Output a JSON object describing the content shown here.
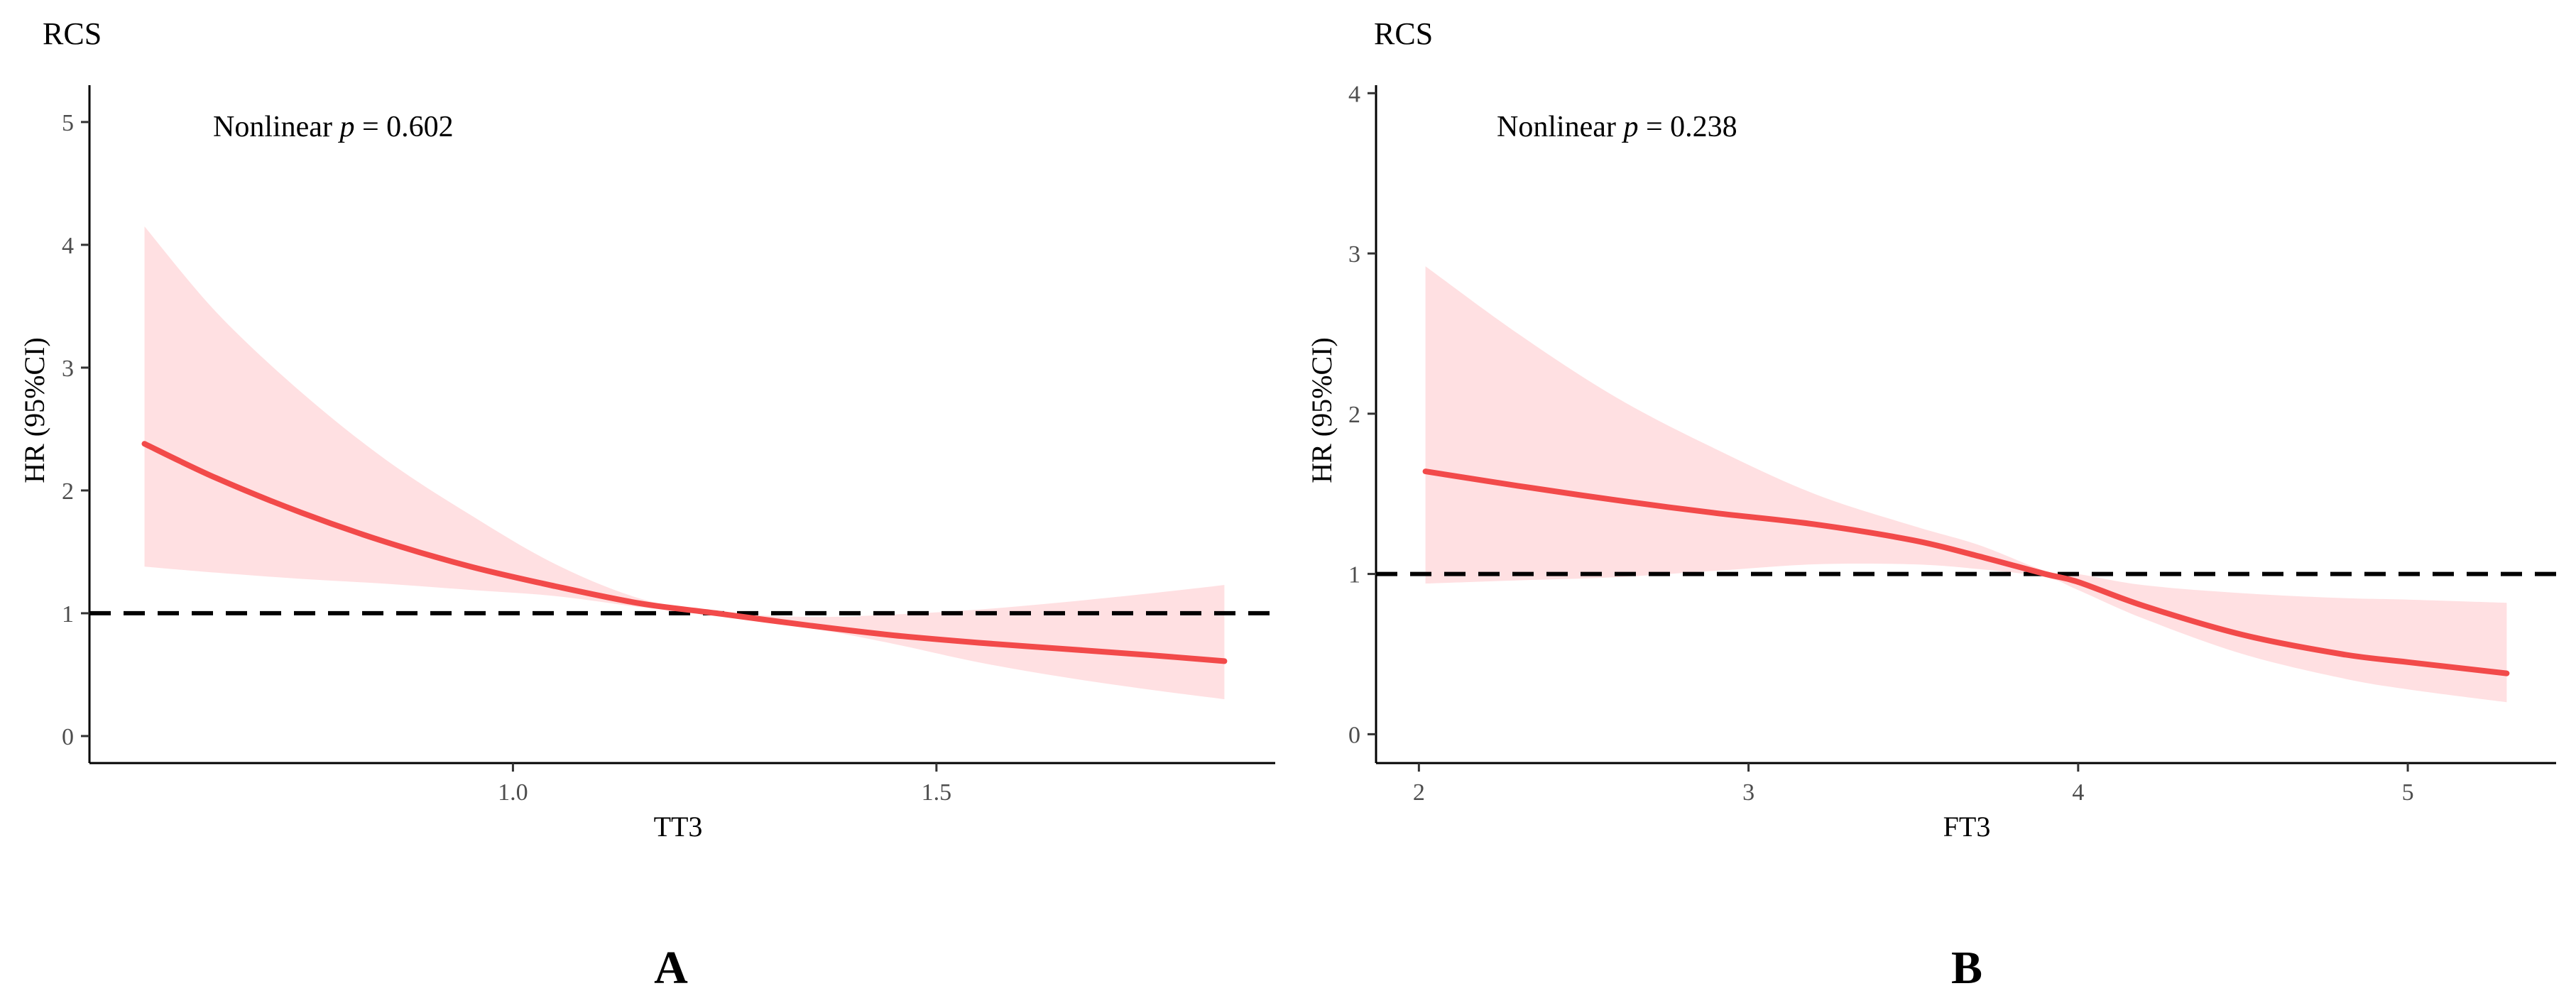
{
  "colors": {
    "line": "#f24a4a",
    "band": "#ffe0e2",
    "reference": "#000000",
    "axis": "#000000"
  },
  "chart_data": [
    {
      "type": "line",
      "panel_label": "A",
      "title": "RCS",
      "annotation": {
        "prefix": "Nonlinear ",
        "pvar": "p",
        "suffix": " = 0.602"
      },
      "xlabel": "TT3",
      "ylabel": "HR (95%CI)",
      "xlim": [
        0.5,
        1.9
      ],
      "ylim": [
        -0.22,
        5.3
      ],
      "xticks": [
        1.0,
        1.5
      ],
      "xtick_labels": [
        "1.0",
        "1.5"
      ],
      "yticks": [
        0,
        1,
        2,
        3,
        4,
        5
      ],
      "ytick_labels": [
        "0",
        "1",
        "2",
        "3",
        "4",
        "5"
      ],
      "reference_line": 1,
      "series": [
        {
          "name": "HR",
          "x": [
            0.565,
            0.65,
            0.75,
            0.85,
            0.95,
            1.05,
            1.15,
            1.24,
            1.35,
            1.45,
            1.55,
            1.65,
            1.75,
            1.84
          ],
          "y": [
            2.38,
            2.1,
            1.82,
            1.58,
            1.38,
            1.22,
            1.08,
            1.0,
            0.9,
            0.82,
            0.76,
            0.71,
            0.66,
            0.61
          ],
          "lower": [
            1.38,
            1.33,
            1.28,
            1.24,
            1.19,
            1.14,
            1.05,
            0.98,
            0.88,
            0.75,
            0.6,
            0.48,
            0.38,
            0.3
          ],
          "upper": [
            4.15,
            3.45,
            2.8,
            2.25,
            1.8,
            1.4,
            1.12,
            1.01,
            0.97,
            0.99,
            1.03,
            1.09,
            1.16,
            1.23
          ]
        }
      ]
    },
    {
      "type": "line",
      "panel_label": "B",
      "title": "RCS",
      "annotation": {
        "prefix": "Nonlinear ",
        "pvar": "p",
        "suffix": " = 0.238"
      },
      "xlabel": "FT3",
      "ylabel": "HR (95%CI)",
      "xlim": [
        1.87,
        5.45
      ],
      "ylim": [
        -0.18,
        4.05
      ],
      "xticks": [
        2,
        3,
        4,
        5
      ],
      "xtick_labels": [
        "2",
        "3",
        "4",
        "5"
      ],
      "yticks": [
        0,
        1,
        2,
        3,
        4
      ],
      "ytick_labels": [
        "0",
        "1",
        "2",
        "3",
        "4"
      ],
      "reference_line": 1,
      "series": [
        {
          "name": "HR",
          "x": [
            2.02,
            2.3,
            2.6,
            2.9,
            3.2,
            3.5,
            3.7,
            3.9,
            4.0,
            4.2,
            4.5,
            4.8,
            5.0,
            5.3
          ],
          "y": [
            1.64,
            1.55,
            1.46,
            1.38,
            1.31,
            1.21,
            1.11,
            1.0,
            0.95,
            0.8,
            0.62,
            0.5,
            0.45,
            0.38
          ],
          "lower": [
            0.94,
            0.96,
            0.98,
            1.02,
            1.06,
            1.06,
            1.03,
            0.98,
            0.9,
            0.72,
            0.5,
            0.35,
            0.28,
            0.2
          ],
          "upper": [
            2.92,
            2.5,
            2.1,
            1.78,
            1.5,
            1.3,
            1.18,
            1.02,
            1.0,
            0.93,
            0.88,
            0.85,
            0.84,
            0.82
          ]
        }
      ]
    }
  ]
}
